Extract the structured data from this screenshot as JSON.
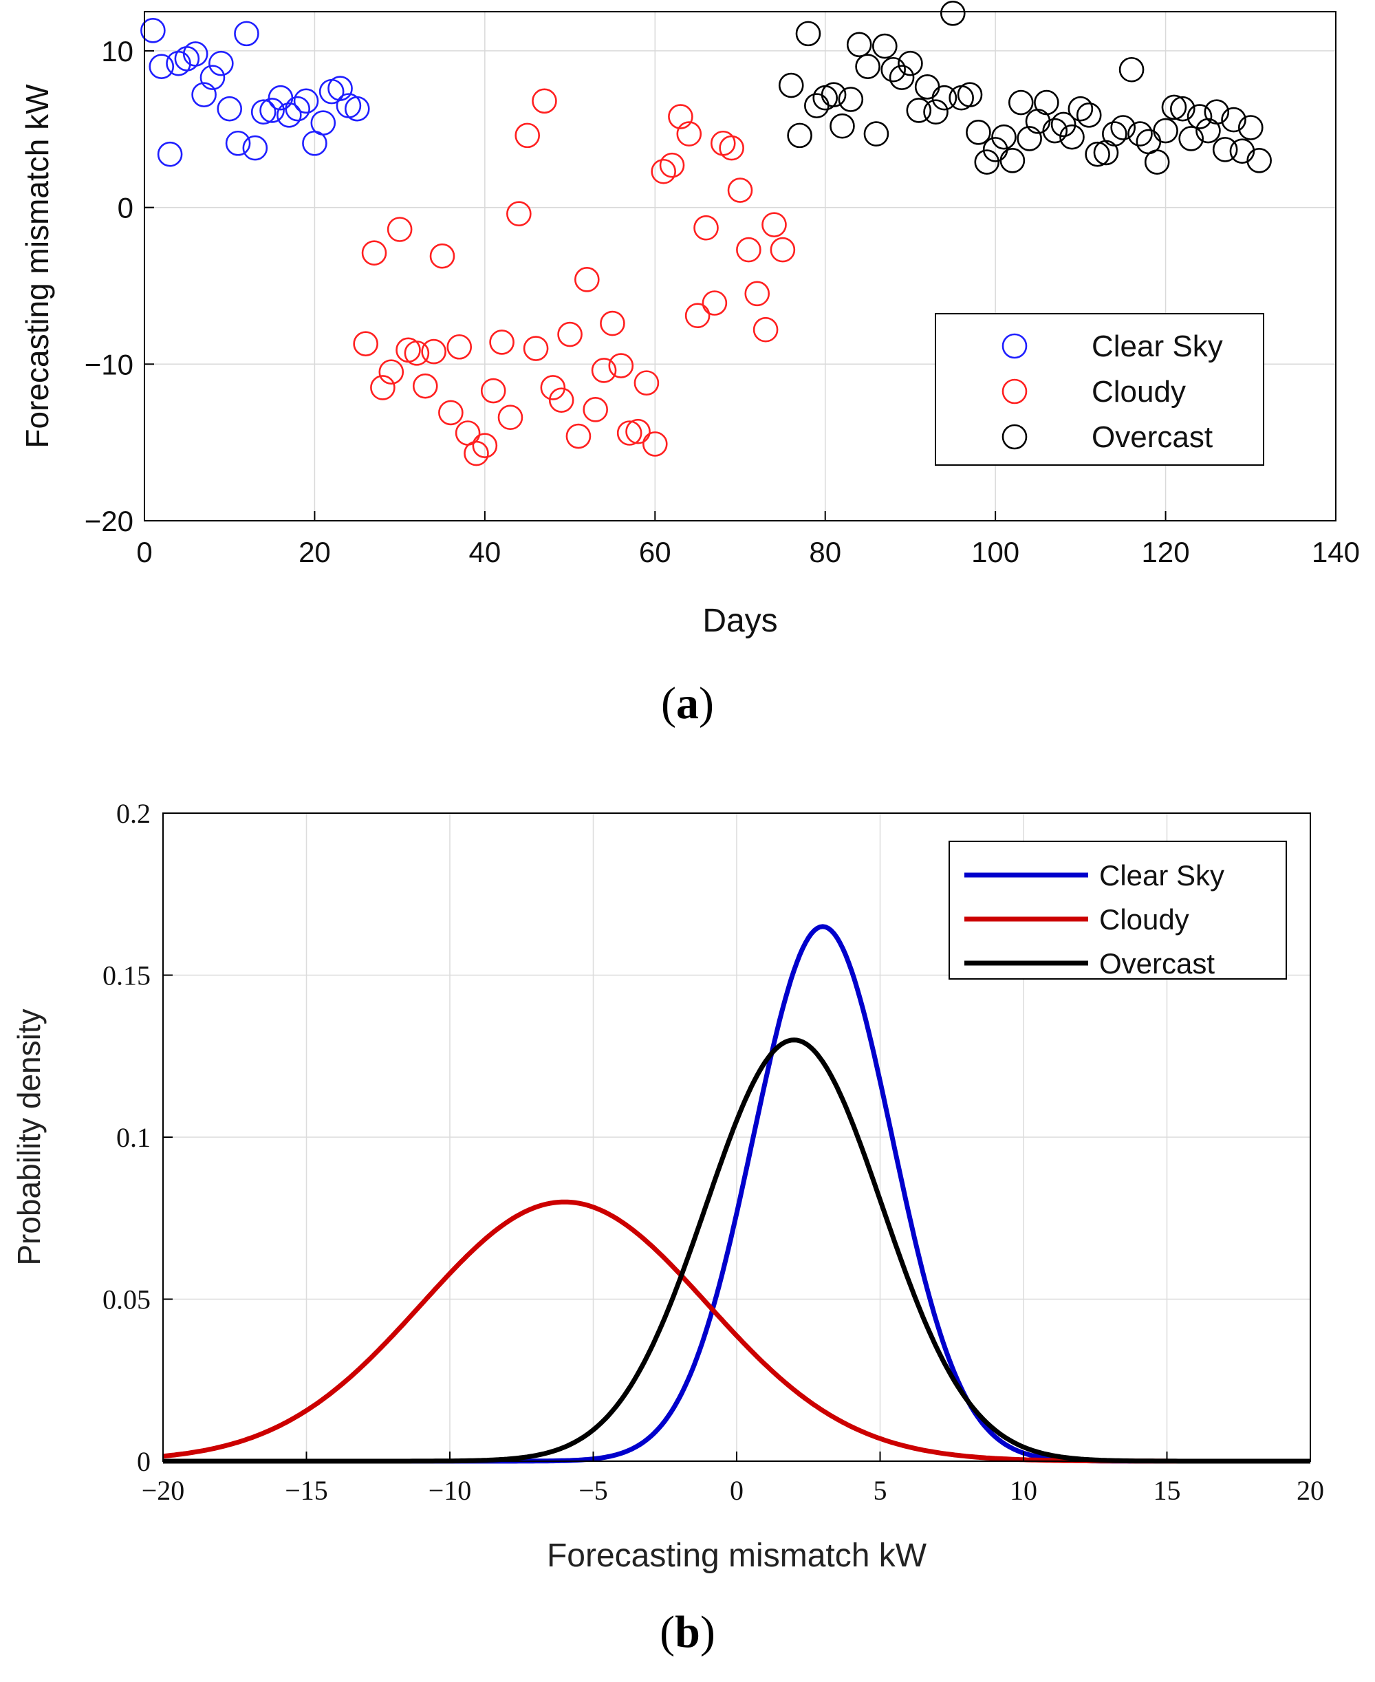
{
  "figure_a": {
    "caption_label": "a",
    "chart_data": {
      "type": "scatter",
      "title": "",
      "xlabel": "Days",
      "ylabel": "Forecasting mismatch kW",
      "xlim": [
        0,
        140
      ],
      "ylim": [
        -20,
        12.5
      ],
      "xticks": [
        0,
        20,
        40,
        60,
        80,
        100,
        120,
        140
      ],
      "yticks": [
        -20,
        -10,
        0,
        10
      ],
      "xtick_labels": [
        "0",
        "20",
        "40",
        "60",
        "80",
        "100",
        "120",
        "140"
      ],
      "ytick_labels": [
        "−20",
        "−10",
        "0",
        "10"
      ],
      "grid": true,
      "legend_position": "lower-right",
      "series": [
        {
          "name": "Clear Sky",
          "color": "#1f1fff",
          "x": [
            1,
            2,
            3,
            4,
            5,
            6,
            7,
            8,
            9,
            10,
            11,
            12,
            13,
            14,
            15,
            16,
            17,
            18,
            19,
            20,
            21,
            22,
            23,
            24,
            25
          ],
          "y": [
            11.3,
            9.0,
            3.4,
            9.2,
            9.5,
            9.8,
            7.2,
            8.3,
            9.2,
            6.3,
            4.1,
            11.1,
            3.8,
            6.1,
            6.2,
            7.0,
            5.9,
            6.3,
            6.8,
            4.1,
            5.4,
            7.4,
            7.6,
            6.5,
            6.3
          ]
        },
        {
          "name": "Cloudy",
          "color": "#ff2020",
          "x": [
            26,
            27,
            28,
            29,
            30,
            31,
            32,
            33,
            34,
            35,
            36,
            37,
            38,
            39,
            40,
            41,
            42,
            43,
            44,
            45,
            46,
            47,
            48,
            49,
            50,
            51,
            52,
            53,
            54,
            55,
            56,
            57,
            58,
            59,
            60,
            61,
            62,
            63,
            64,
            65,
            66,
            67,
            68,
            69,
            70,
            71,
            72,
            73,
            74,
            75
          ],
          "y": [
            -8.7,
            -2.9,
            -11.5,
            -10.5,
            -1.4,
            -9.1,
            -9.3,
            -11.4,
            -9.2,
            -3.1,
            -13.1,
            -8.9,
            -14.4,
            -15.7,
            -15.2,
            -11.7,
            -8.6,
            -13.4,
            -0.4,
            4.6,
            -9.0,
            6.8,
            -11.5,
            -12.3,
            -8.1,
            -14.6,
            -4.6,
            -12.9,
            -10.4,
            -7.4,
            -10.1,
            -14.4,
            -14.3,
            -11.2,
            -15.1,
            2.3,
            2.7,
            5.8,
            4.7,
            -6.9,
            -1.3,
            -6.1,
            4.1,
            3.8,
            1.1,
            -2.7,
            -5.5,
            -7.8,
            -1.1,
            -2.7
          ]
        },
        {
          "name": "Overcast",
          "color": "#000000",
          "x": [
            76,
            77,
            78,
            79,
            80,
            81,
            82,
            83,
            84,
            85,
            86,
            87,
            88,
            89,
            90,
            91,
            92,
            93,
            94,
            95,
            96,
            97,
            98,
            99,
            100,
            101,
            102,
            103,
            104,
            105,
            106,
            107,
            108,
            109,
            110,
            111,
            112,
            113,
            114,
            115,
            116,
            117,
            118,
            119,
            120,
            121,
            122,
            123,
            124,
            125,
            126,
            127,
            128,
            129,
            130,
            131
          ],
          "y": [
            7.8,
            4.6,
            11.1,
            6.5,
            7.0,
            7.2,
            5.2,
            6.9,
            10.4,
            9.0,
            4.7,
            10.3,
            8.8,
            8.3,
            9.2,
            6.2,
            7.7,
            6.1,
            7.0,
            12.4,
            7.0,
            7.2,
            4.8,
            2.9,
            3.7,
            4.5,
            3.0,
            6.7,
            4.4,
            5.5,
            6.7,
            4.9,
            5.3,
            4.5,
            6.3,
            5.9,
            3.4,
            3.5,
            4.7,
            5.1,
            8.8,
            4.7,
            4.2,
            2.9,
            4.9,
            6.4,
            6.3,
            4.4,
            5.8,
            4.9,
            6.1,
            3.7,
            5.6,
            3.6,
            5.1,
            3.0
          ]
        }
      ]
    }
  },
  "figure_b": {
    "caption_label": "b",
    "chart_data": {
      "type": "line",
      "title": "",
      "xlabel": "Forecasting mismatch kW",
      "ylabel": "Probability density",
      "xlim": [
        -20,
        20
      ],
      "ylim": [
        0,
        0.2
      ],
      "xticks": [
        -20,
        -15,
        -10,
        -5,
        0,
        5,
        10,
        15,
        20
      ],
      "yticks": [
        0,
        0.05,
        0.1,
        0.15,
        0.2
      ],
      "xtick_labels": [
        "−20",
        "−15",
        "−10",
        "−5",
        "0",
        "5",
        "10",
        "15",
        "20"
      ],
      "ytick_labels": [
        "0",
        "0.05",
        "0.1",
        "0.15",
        "0.2"
      ],
      "grid": true,
      "legend_position": "top-right",
      "series": [
        {
          "name": "Clear Sky",
          "color": "#0000cc",
          "mean": 3.0,
          "std": 2.42,
          "peak": 0.165
        },
        {
          "name": "Cloudy",
          "color": "#cc0000",
          "mean": -6.0,
          "std": 4.98,
          "peak": 0.08
        },
        {
          "name": "Overcast",
          "color": "#000000",
          "mean": 2.0,
          "std": 3.07,
          "peak": 0.13
        }
      ]
    }
  }
}
